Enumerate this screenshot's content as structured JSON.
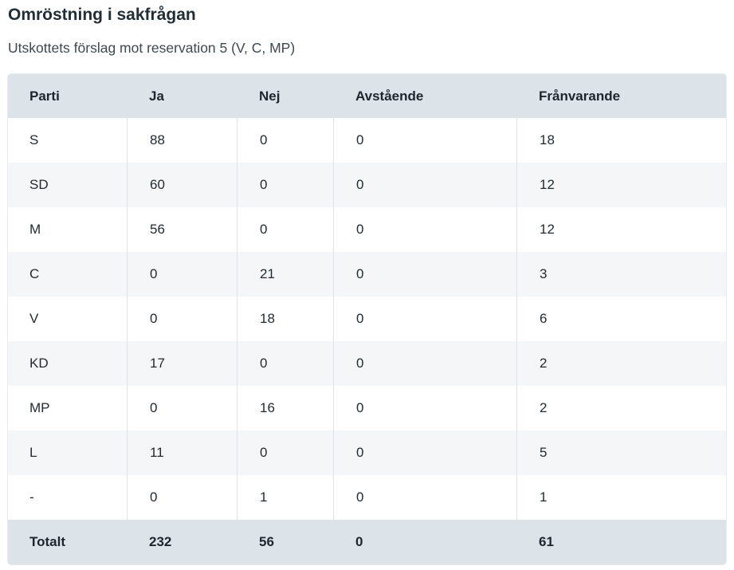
{
  "page": {
    "title": "Omröstning i sakfrågan",
    "subtitle": "Utskottets förslag mot reservation 5 (V, C, MP)"
  },
  "colors": {
    "header_bg": "#dce3e9",
    "total_bg": "#dce3e9",
    "row_bg": "#ffffff",
    "row_alt_bg": "#f5f6f7",
    "column_divider": "#dee3e7",
    "heading_text": "#222e37",
    "body_text": "#222b31"
  },
  "chart_data": {
    "type": "table",
    "title": "Omröstning i sakfrågan",
    "subtitle": "Utskottets förslag mot reservation 5 (V, C, MP)",
    "columns": [
      "Parti",
      "Ja",
      "Nej",
      "Avstående",
      "Frånvarande"
    ],
    "rows": [
      {
        "party": "S",
        "values": [
          "88",
          "0",
          "0",
          "18"
        ]
      },
      {
        "party": "SD",
        "values": [
          "60",
          "0",
          "0",
          "12"
        ]
      },
      {
        "party": "M",
        "values": [
          "56",
          "0",
          "0",
          "12"
        ]
      },
      {
        "party": "C",
        "values": [
          "0",
          "21",
          "0",
          "3"
        ]
      },
      {
        "party": "V",
        "values": [
          "0",
          "18",
          "0",
          "6"
        ]
      },
      {
        "party": "KD",
        "values": [
          "17",
          "0",
          "0",
          "2"
        ]
      },
      {
        "party": "MP",
        "values": [
          "0",
          "16",
          "0",
          "2"
        ]
      },
      {
        "party": "L",
        "values": [
          "11",
          "0",
          "0",
          "5"
        ]
      },
      {
        "party": "-",
        "values": [
          "0",
          "1",
          "0",
          "1"
        ]
      }
    ],
    "total_row": {
      "label": "Totalt",
      "values": [
        "232",
        "56",
        "0",
        "61"
      ]
    }
  }
}
